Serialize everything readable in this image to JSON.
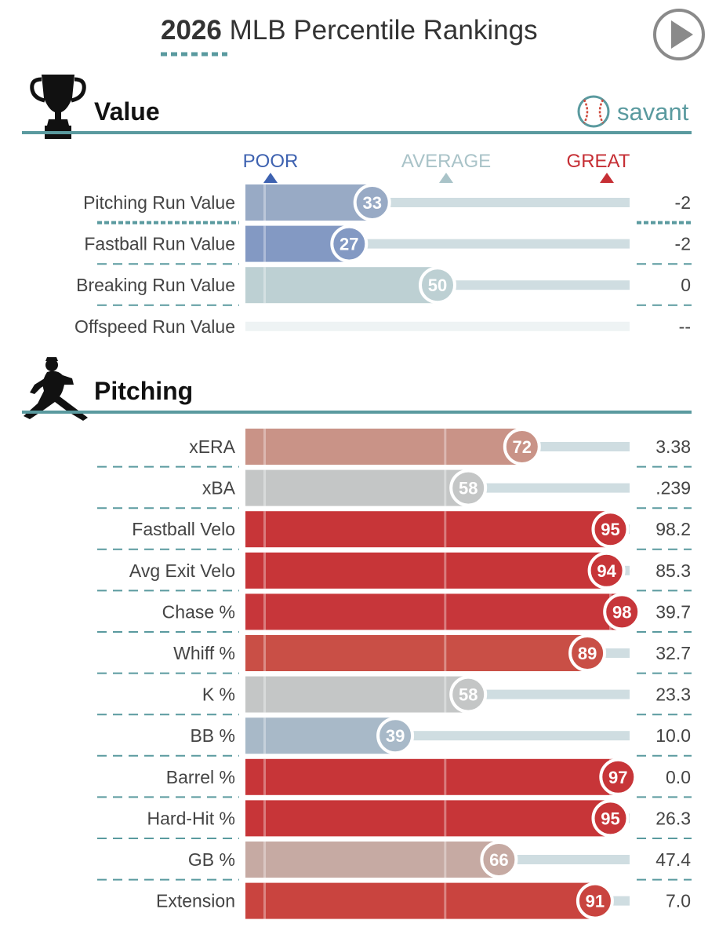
{
  "header": {
    "year": "2026",
    "title_rest": " MLB Percentile Rankings",
    "play_icon": "play-circle-icon"
  },
  "brand": {
    "text": "savant",
    "icon": "baseball-icon"
  },
  "scale": {
    "poor": "POOR",
    "average": "AVERAGE",
    "great": "GREAT"
  },
  "colors": {
    "teal": "#5a9a9f",
    "poor": "#3e62b0",
    "average_label": "#a9c3c8",
    "great": "#c62f35",
    "track": "#cfdde1",
    "track_empty": "#eef3f4"
  },
  "chart_data": {
    "type": "bar",
    "xlim": [
      0,
      100
    ],
    "sections": [
      {
        "title": "Value",
        "icon": "trophy-icon",
        "rows": [
          {
            "label": "Pitching Run Value",
            "percentile": 33,
            "value": "-2",
            "color": "#98aac5"
          },
          {
            "label": "Fastball Run Value",
            "percentile": 27,
            "value": "-2",
            "color": "#8399c3"
          },
          {
            "label": "Breaking Run Value",
            "percentile": 50,
            "value": "0",
            "color": "#bdd0d3"
          },
          {
            "label": "Offspeed Run Value",
            "percentile": null,
            "value": "--",
            "color": "#eef3f4"
          }
        ]
      },
      {
        "title": "Pitching",
        "icon": "pitcher-icon",
        "rows": [
          {
            "label": "xERA",
            "percentile": 72,
            "value": "3.38",
            "color": "#c99387"
          },
          {
            "label": "xBA",
            "percentile": 58,
            "value": ".239",
            "color": "#c4c6c6"
          },
          {
            "label": "Fastball Velo",
            "percentile": 95,
            "value": "98.2",
            "color": "#c73538"
          },
          {
            "label": "Avg Exit Velo",
            "percentile": 94,
            "value": "85.3",
            "color": "#c73538"
          },
          {
            "label": "Chase %",
            "percentile": 98,
            "value": "39.7",
            "color": "#c7363a"
          },
          {
            "label": "Whiff %",
            "percentile": 89,
            "value": "32.7",
            "color": "#c94f46"
          },
          {
            "label": "K %",
            "percentile": 58,
            "value": "23.3",
            "color": "#c4c6c6"
          },
          {
            "label": "BB %",
            "percentile": 39,
            "value": "10.0",
            "color": "#a8b9c8"
          },
          {
            "label": "Barrel %",
            "percentile": 97,
            "value": "0.0",
            "color": "#c73538"
          },
          {
            "label": "Hard-Hit %",
            "percentile": 95,
            "value": "26.3",
            "color": "#c73538"
          },
          {
            "label": "GB %",
            "percentile": 66,
            "value": "47.4",
            "color": "#c6aaa3"
          },
          {
            "label": "Extension",
            "percentile": 91,
            "value": "7.0",
            "color": "#c9443f"
          }
        ]
      }
    ]
  }
}
